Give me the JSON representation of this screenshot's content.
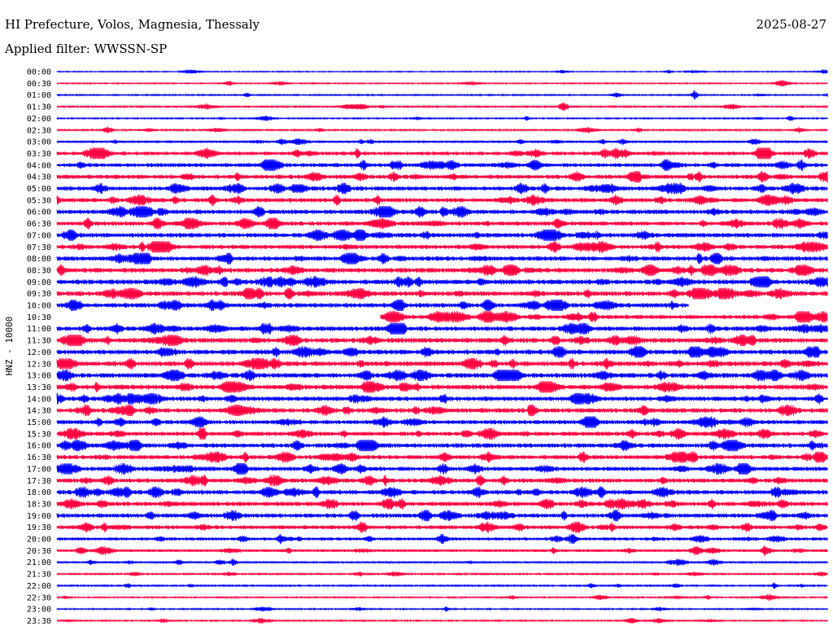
{
  "header": {
    "station_line": "HI Prefecture, Volos, Magnesia, Thessaly",
    "date": "2025-08-27",
    "filter_line": "Applied filter: WWSSN-SP"
  },
  "chart_data": {
    "type": "line",
    "kind": "helicorder",
    "ylabel": "HNZ - 10000",
    "row_labels": [
      "00:00",
      "00:30",
      "01:00",
      "01:30",
      "02:00",
      "02:30",
      "03:00",
      "03:30",
      "04:00",
      "04:30",
      "05:00",
      "05:30",
      "06:00",
      "06:30",
      "07:00",
      "07:30",
      "08:00",
      "08:30",
      "09:00",
      "09:30",
      "10:00",
      "10:30",
      "11:00",
      "11:30",
      "12:00",
      "12:30",
      "13:00",
      "13:30",
      "14:00",
      "14:30",
      "15:00",
      "15:30",
      "16:00",
      "16:30",
      "17:00",
      "17:30",
      "18:00",
      "18:30",
      "19:00",
      "19:30",
      "20:00",
      "20:30",
      "21:00",
      "21:30",
      "22:00",
      "22:30",
      "23:00",
      "23:30"
    ],
    "row_colors": [
      "#0000ff",
      "#ff0040"
    ],
    "relative_noise_level": [
      0.8,
      0.9,
      1.0,
      1.2,
      1.0,
      1.2,
      1.8,
      2.6,
      2.8,
      3.0,
      3.0,
      3.0,
      3.2,
      3.0,
      3.2,
      3.0,
      3.2,
      3.4,
      3.4,
      3.4,
      3.2,
      3.0,
      3.2,
      3.4,
      3.4,
      3.4,
      3.4,
      3.4,
      3.2,
      3.2,
      3.0,
      3.0,
      3.2,
      3.0,
      3.0,
      3.0,
      3.2,
      3.0,
      3.0,
      2.8,
      2.2,
      2.0,
      1.4,
      1.2,
      1.2,
      1.0,
      1.0,
      1.0
    ],
    "row_start_fraction": [
      0,
      0,
      0,
      0,
      0,
      0,
      0,
      0,
      0,
      0,
      0,
      0,
      0,
      0,
      0,
      0,
      0,
      0,
      0,
      0,
      0,
      0.42,
      0,
      0,
      0,
      0,
      0,
      0,
      0,
      0,
      0,
      0,
      0,
      0,
      0,
      0,
      0,
      0,
      0,
      0,
      0,
      0,
      0,
      0,
      0,
      0,
      0,
      0
    ],
    "row_end_fraction": [
      1,
      1,
      1,
      1,
      1,
      1,
      1,
      1,
      1,
      1,
      1,
      1,
      1,
      1,
      1,
      1,
      1,
      1,
      1,
      1,
      0.82,
      1,
      1,
      1,
      1,
      1,
      1,
      1,
      1,
      1,
      1,
      1,
      1,
      1,
      1,
      1,
      1,
      1,
      1,
      1,
      1,
      1,
      1,
      1,
      1,
      1,
      1,
      1
    ]
  }
}
